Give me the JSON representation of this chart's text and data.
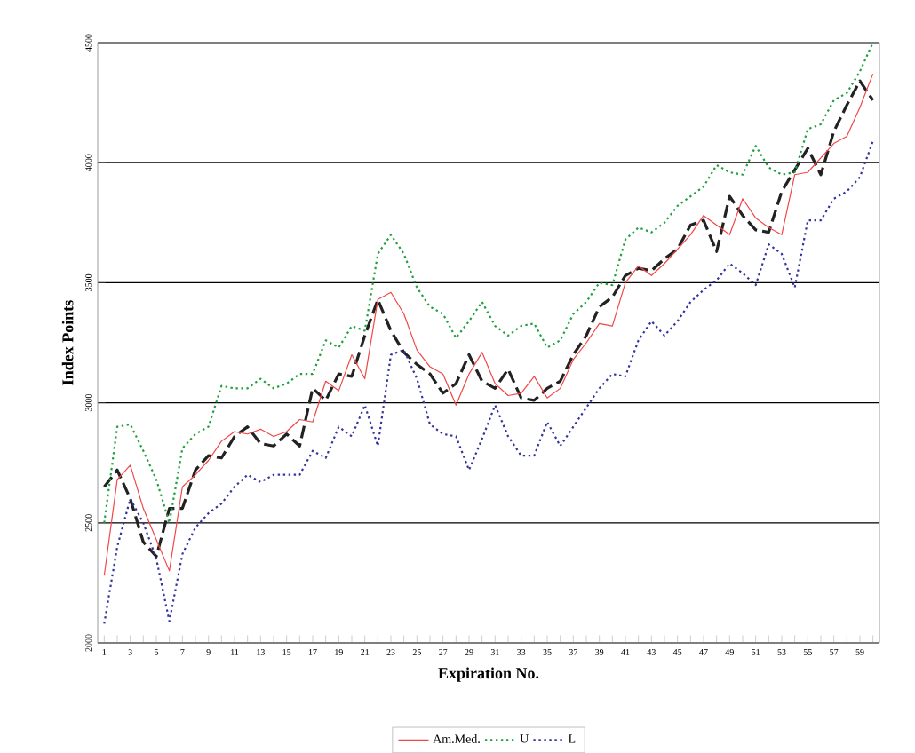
{
  "chart_data": {
    "type": "line",
    "xlabel": "Expiration No.",
    "ylabel": "Index Points",
    "categories": [
      "1",
      null,
      "3",
      null,
      "5",
      null,
      "7",
      null,
      "9",
      null,
      "11",
      null,
      "13",
      null,
      "15",
      null,
      "17",
      null,
      "19",
      null,
      "21",
      null,
      "23",
      null,
      "25",
      null,
      "27",
      null,
      "29",
      null,
      "31",
      null,
      "33",
      null,
      "35",
      null,
      "37",
      null,
      "39",
      null,
      "41",
      null,
      "43",
      null,
      "45",
      null,
      "47",
      null,
      "49",
      null,
      "51",
      null,
      "53",
      null,
      "55",
      null,
      "57",
      null,
      "59",
      null
    ],
    "series": [
      {
        "color": "#222222",
        "line_style": "dashed",
        "values": [
          2650,
          2720,
          2600,
          2420,
          2360,
          2560,
          2560,
          2720,
          2780,
          2770,
          2860,
          2900,
          2830,
          2820,
          2870,
          2820,
          3060,
          3010,
          3120,
          3110,
          3280,
          3430,
          3300,
          3210,
          3160,
          3120,
          3040,
          3080,
          3200,
          3090,
          3060,
          3140,
          3020,
          3010,
          3060,
          3090,
          3200,
          3280,
          3400,
          3440,
          3530,
          3560,
          3550,
          3600,
          3640,
          3740,
          3760,
          3630,
          3860,
          3780,
          3720,
          3710,
          3880,
          3970,
          4060,
          3950,
          4130,
          4240,
          4340,
          4260
        ]
      },
      {
        "name": "Am.Med.",
        "color": "#f04848",
        "line_style": "solid",
        "values": [
          2280,
          2680,
          2740,
          2560,
          2430,
          2300,
          2650,
          2700,
          2760,
          2840,
          2880,
          2870,
          2890,
          2860,
          2880,
          2930,
          2920,
          3090,
          3050,
          3200,
          3100,
          3430,
          3460,
          3370,
          3220,
          3150,
          3120,
          2990,
          3120,
          3210,
          3080,
          3030,
          3040,
          3110,
          3020,
          3060,
          3180,
          3250,
          3330,
          3320,
          3500,
          3570,
          3530,
          3580,
          3640,
          3700,
          3780,
          3740,
          3700,
          3850,
          3770,
          3730,
          3700,
          3950,
          3960,
          4020,
          4080,
          4110,
          4230,
          4370
        ]
      },
      {
        "name": "U",
        "color": "#22a040",
        "line_style": "dotted",
        "values": [
          2500,
          2900,
          2910,
          2800,
          2680,
          2500,
          2810,
          2870,
          2900,
          3070,
          3060,
          3060,
          3100,
          3060,
          3080,
          3120,
          3120,
          3260,
          3230,
          3320,
          3300,
          3620,
          3700,
          3620,
          3480,
          3400,
          3370,
          3270,
          3340,
          3420,
          3320,
          3280,
          3320,
          3330,
          3230,
          3260,
          3370,
          3420,
          3500,
          3490,
          3680,
          3730,
          3710,
          3750,
          3820,
          3860,
          3900,
          3990,
          3960,
          3950,
          4070,
          3980,
          3950,
          3960,
          4140,
          4160,
          4260,
          4290,
          4380,
          4500
        ]
      },
      {
        "name": "L",
        "color": "#3434a0",
        "line_style": "dotted",
        "values": [
          2080,
          2400,
          2600,
          2500,
          2350,
          2090,
          2370,
          2480,
          2540,
          2580,
          2650,
          2700,
          2670,
          2700,
          2700,
          2700,
          2800,
          2770,
          2900,
          2860,
          2990,
          2820,
          3200,
          3220,
          3100,
          2910,
          2870,
          2860,
          2720,
          2850,
          2990,
          2860,
          2780,
          2780,
          2920,
          2820,
          2900,
          2980,
          3060,
          3120,
          3110,
          3260,
          3340,
          3280,
          3340,
          3420,
          3470,
          3510,
          3580,
          3540,
          3490,
          3660,
          3620,
          3480,
          3760,
          3760,
          3850,
          3880,
          3940,
          4090
        ]
      }
    ],
    "ylim": [
      2000,
      4500
    ],
    "yticks": [
      2000,
      2500,
      3000,
      3500,
      4000,
      4500
    ],
    "grid": "y",
    "legend": "bottom",
    "marker": "none"
  }
}
